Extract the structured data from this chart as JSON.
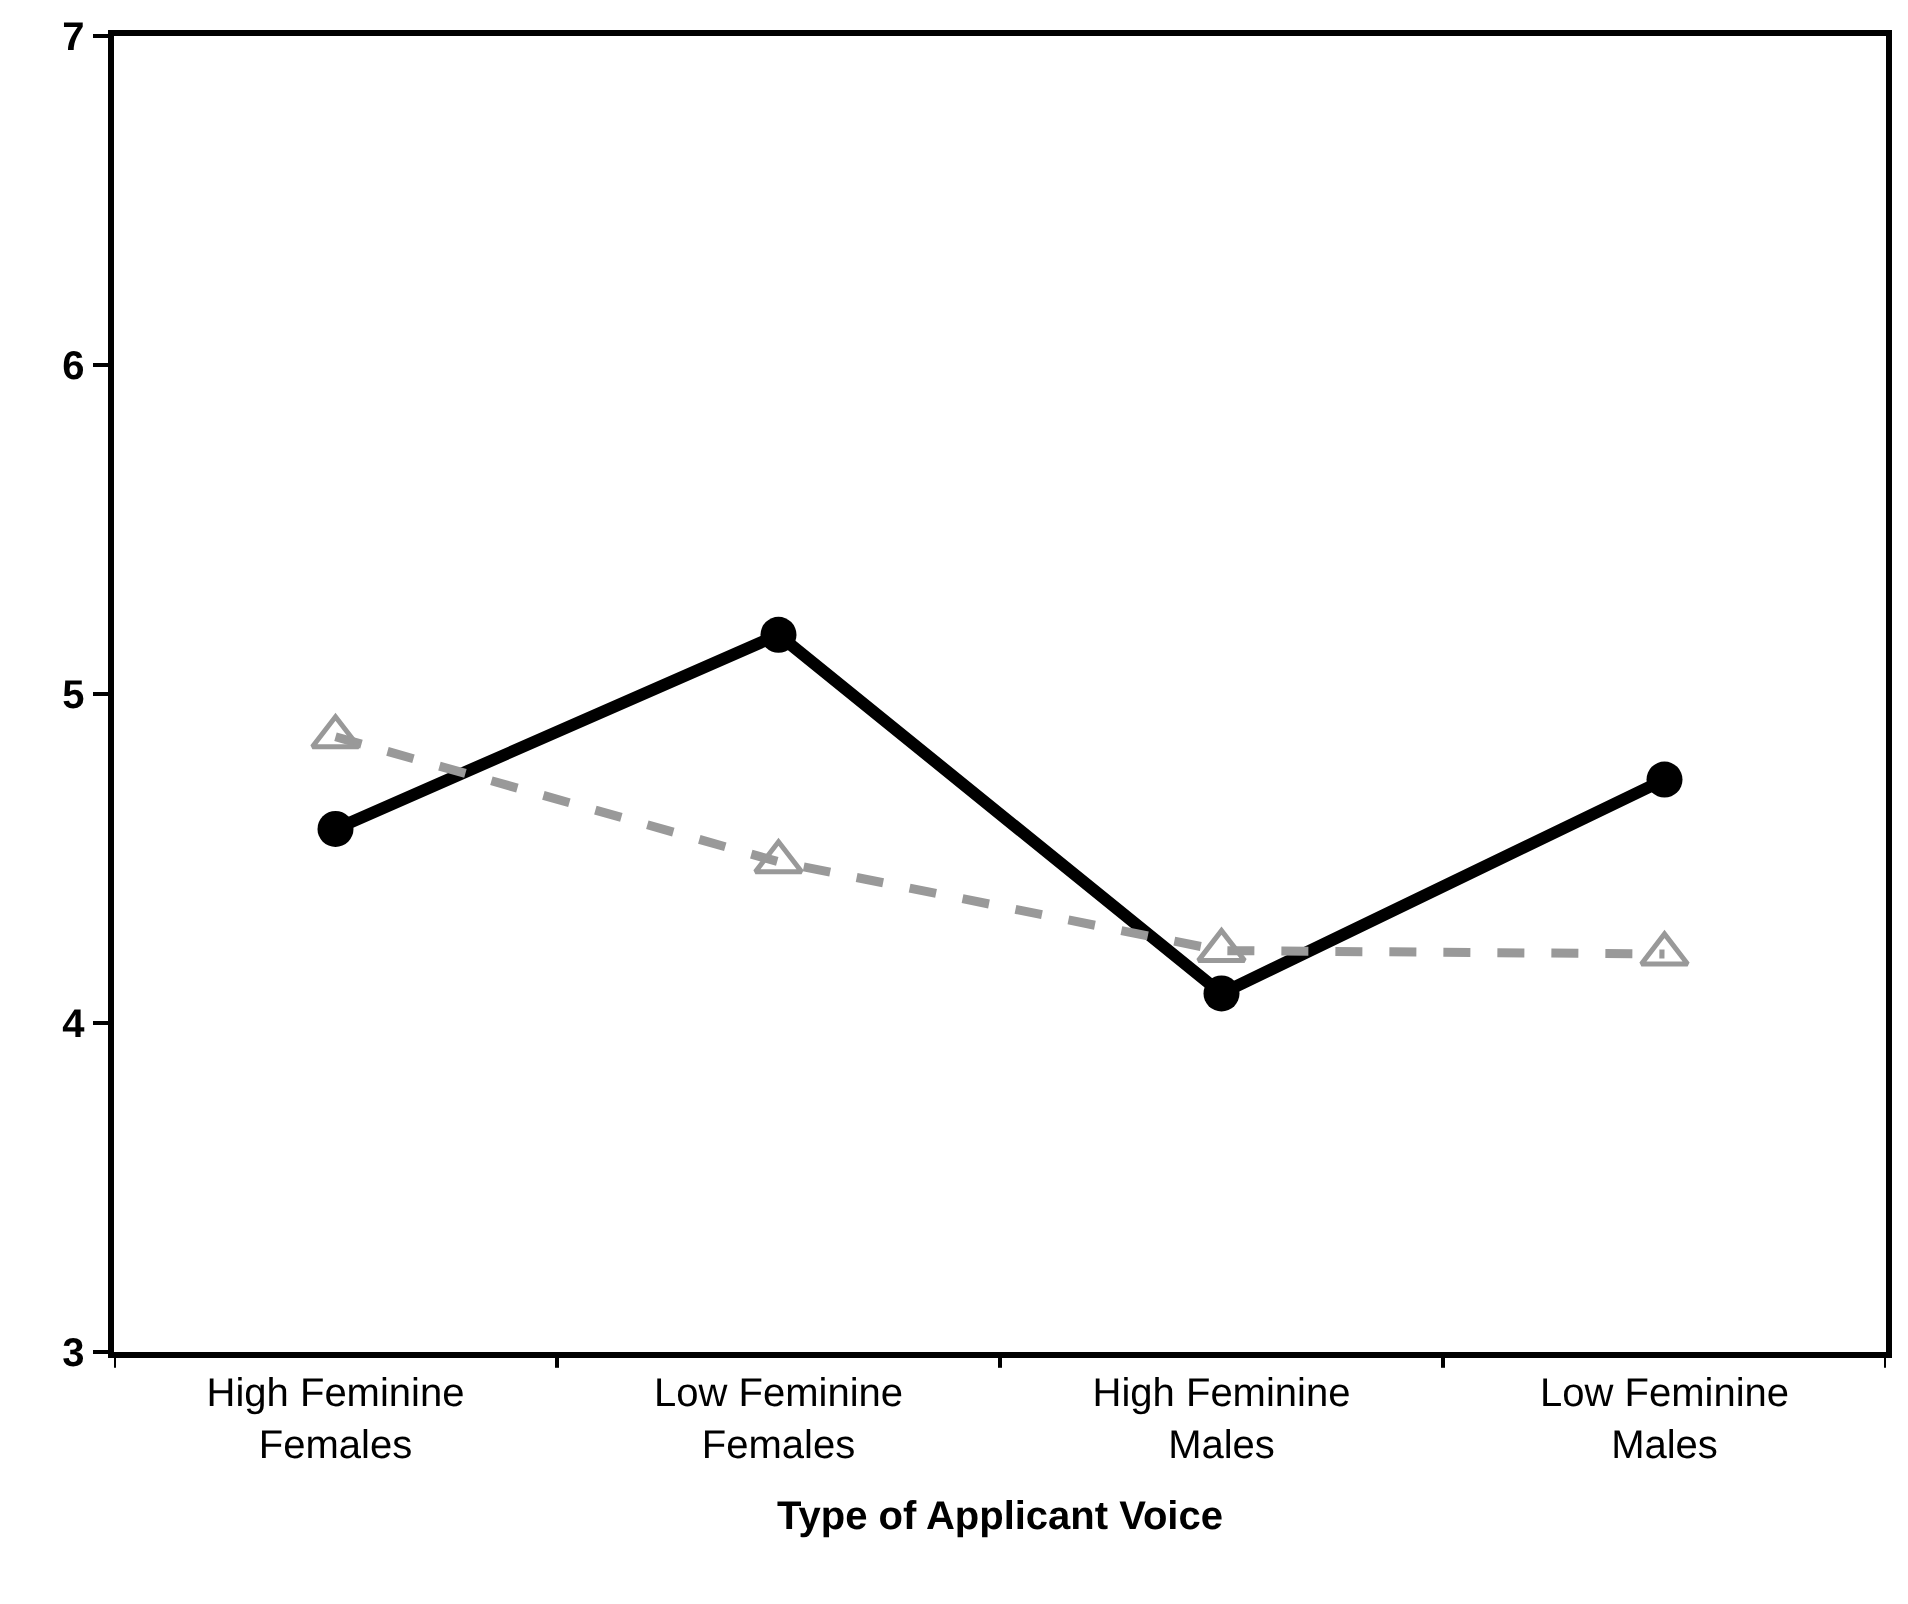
{
  "chart_data": {
    "type": "line",
    "xlabel": "Type of Applicant Voice",
    "categories": [
      "High Feminine\nFemales",
      "Low Feminine\nFemales",
      "High Feminine\nMales",
      "Low Feminine\nMales"
    ],
    "series": [
      {
        "color": "#000000",
        "values": [
          4.59,
          5.18,
          4.09,
          4.74
        ],
        "marker": "circle",
        "line_style": "solid"
      },
      {
        "color": "#999999",
        "values": [
          4.87,
          4.49,
          4.22,
          4.21
        ],
        "marker": "triangle",
        "line_style": "dashed"
      }
    ],
    "ylim": [
      3,
      7
    ],
    "yticks": [
      3,
      4,
      5,
      6,
      7
    ]
  }
}
